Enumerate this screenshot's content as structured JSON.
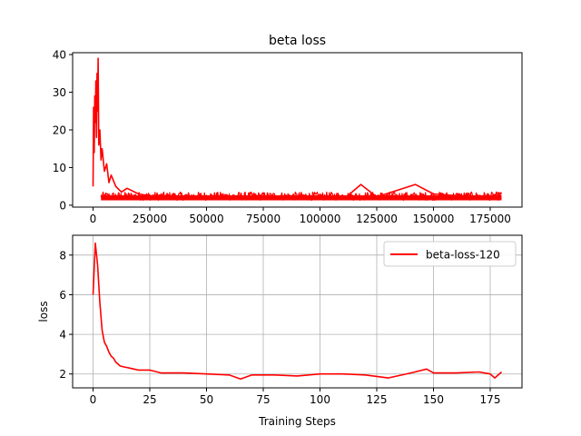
{
  "chart_data": [
    {
      "type": "line",
      "title": "beta loss",
      "xlabel": "",
      "ylabel": "",
      "xlim": [
        -9000,
        189000
      ],
      "ylim": [
        -0.5,
        40.5
      ],
      "xticks": [
        0,
        25000,
        50000,
        75000,
        100000,
        125000,
        150000,
        175000
      ],
      "xtick_labels": [
        "0",
        "25000",
        "50000",
        "75000",
        "100000",
        "125000",
        "150000",
        "175000"
      ],
      "yticks": [
        0,
        10,
        20,
        30,
        40
      ],
      "ytick_labels": [
        "0",
        "10",
        "20",
        "30",
        "40"
      ],
      "grid": false,
      "legend": null,
      "series": [
        {
          "color": "#ff0000",
          "x": [
            0,
            250,
            500,
            750,
            1000,
            1250,
            1500,
            1750,
            2000,
            2250,
            2500,
            3000,
            3500,
            4000,
            5000,
            6000,
            7000,
            8000,
            10000,
            12500,
            15000,
            20000,
            25000,
            35000,
            50000,
            75000,
            100000,
            112000,
            118000,
            125000,
            142000,
            150000,
            165000,
            175000,
            180000
          ],
          "y": [
            5,
            26,
            14,
            29,
            22,
            33,
            18,
            35,
            25,
            39,
            16,
            20,
            12,
            15,
            9,
            11,
            6,
            8,
            5,
            3.5,
            4.5,
            3,
            2.5,
            2.5,
            2.2,
            2.3,
            2.2,
            2.4,
            5.5,
            2.2,
            5.5,
            3,
            2.3,
            2.4,
            3.3
          ],
          "envelope_min": 1.3,
          "envelope_max": 3.5
        }
      ]
    },
    {
      "type": "line",
      "title": "",
      "xlabel": "Training Steps",
      "ylabel": "loss",
      "xlim": [
        -9,
        189
      ],
      "ylim": [
        1.3,
        9.0
      ],
      "xticks": [
        0,
        25,
        50,
        75,
        100,
        125,
        150,
        175
      ],
      "xtick_labels": [
        "0",
        "25",
        "50",
        "75",
        "100",
        "125",
        "150",
        "175"
      ],
      "yticks": [
        2,
        4,
        6,
        8
      ],
      "ytick_labels": [
        "2",
        "4",
        "6",
        "8"
      ],
      "grid": true,
      "legend": "top-right",
      "series": [
        {
          "name": "beta-loss-120",
          "color": "#ff0000",
          "x": [
            0,
            1,
            2,
            3,
            4,
            5,
            6,
            7,
            8,
            9,
            10,
            12,
            14,
            16,
            18,
            20,
            25,
            30,
            40,
            50,
            60,
            65,
            70,
            80,
            90,
            100,
            110,
            120,
            130,
            140,
            147,
            150,
            160,
            170,
            175,
            177,
            180
          ],
          "y": [
            6.0,
            8.6,
            7.5,
            5.6,
            4.2,
            3.6,
            3.4,
            3.1,
            2.9,
            2.8,
            2.6,
            2.4,
            2.35,
            2.3,
            2.25,
            2.2,
            2.2,
            2.05,
            2.05,
            2.0,
            1.95,
            1.75,
            1.95,
            1.95,
            1.9,
            2.0,
            2.0,
            1.95,
            1.8,
            2.05,
            2.25,
            2.05,
            2.05,
            2.1,
            2.0,
            1.8,
            2.1
          ]
        }
      ]
    }
  ]
}
